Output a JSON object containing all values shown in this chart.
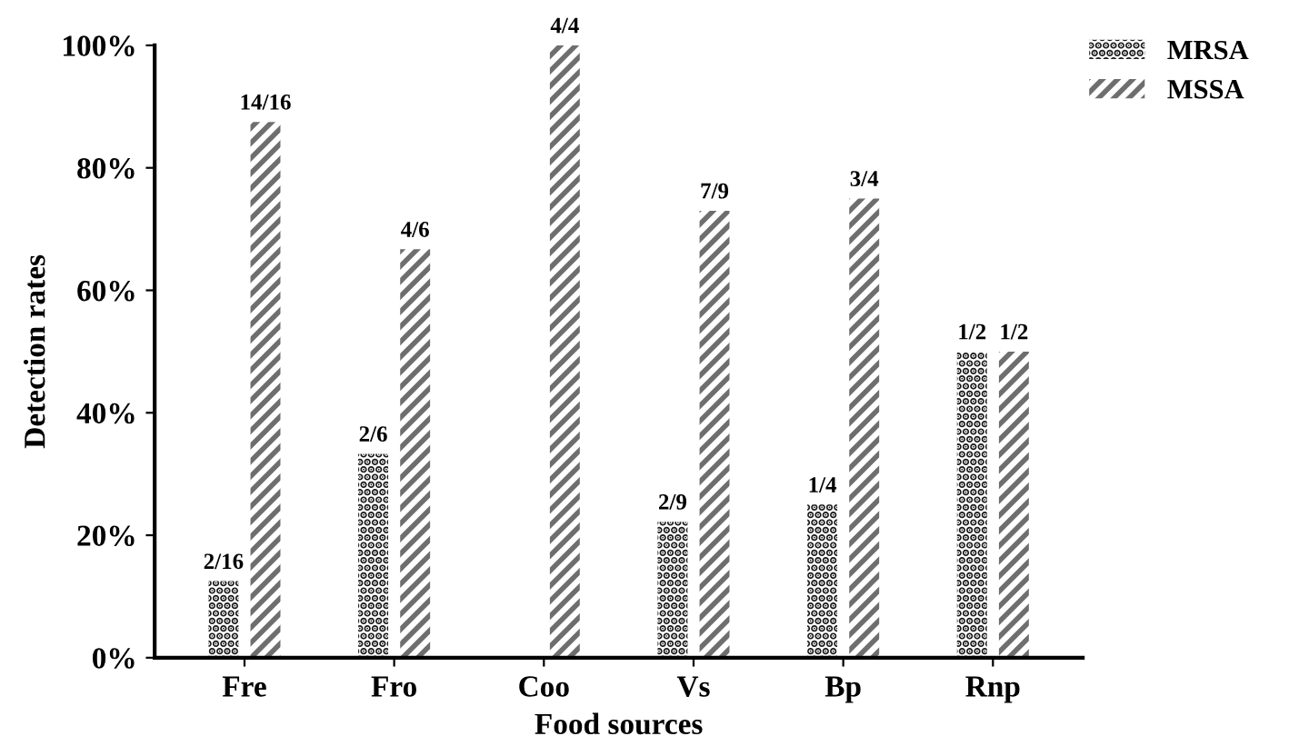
{
  "chart_data": {
    "type": "bar",
    "xlabel": "Food sources",
    "ylabel": "Detection rates",
    "categories": [
      "Fre",
      "Fro",
      "Coo",
      "Vs",
      "Bp",
      "Rnp"
    ],
    "series": [
      {
        "name": "MRSA",
        "color": "#1a1a1a",
        "values": [
          12.5,
          33.3,
          0,
          22.2,
          25,
          50
        ]
      },
      {
        "name": "MSSA",
        "color": "#6e6e6e",
        "values": [
          87.5,
          66.7,
          100,
          73,
          75,
          50
        ]
      }
    ],
    "annotations": [
      {
        "text": "2/16",
        "x": "Fre",
        "y": 12.5
      },
      {
        "text": "14/16",
        "x": "Fre",
        "y": 87.5
      },
      {
        "text": "2/6",
        "x": "Fro",
        "y": 33.3
      },
      {
        "text": "4/6",
        "x": "Fro",
        "y": 66.7
      },
      {
        "text": "4/4",
        "x": "Coo",
        "y": 100
      },
      {
        "text": "2/9",
        "x": "Vs",
        "y": 22.2
      },
      {
        "text": "7/9",
        "x": "Vs",
        "y": 73
      },
      {
        "text": "1/4",
        "x": "Bp",
        "y": 25
      },
      {
        "text": "3/4",
        "x": "Bp",
        "y": 75
      },
      {
        "text": "1/2",
        "x": "Rnp",
        "y": 50
      },
      {
        "text": "1/2",
        "x": "Rnp",
        "y": 50
      }
    ],
    "ylim": [
      0,
      100
    ],
    "yticks": [
      {
        "value": 0,
        "label": "0%"
      },
      {
        "value": 20,
        "label": "20%"
      },
      {
        "value": 40,
        "label": "40%"
      },
      {
        "value": 60,
        "label": "60%"
      },
      {
        "value": 80,
        "label": "80%"
      },
      {
        "value": 100,
        "label": "100%"
      }
    ],
    "legend": "top right",
    "grid": false
  }
}
